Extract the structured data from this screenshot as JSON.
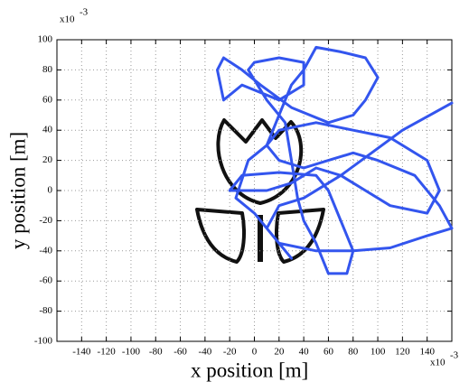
{
  "chart_data": {
    "type": "line",
    "xlabel": "x position [m]",
    "ylabel": "y position [m]",
    "x_multiplier": {
      "base": "x10",
      "exponent": "-3"
    },
    "y_multiplier": {
      "base": "x10",
      "exponent": "-3"
    },
    "color": "#3355ee",
    "grid": true,
    "xlim": [
      -160,
      160
    ],
    "ylim": [
      -100,
      100
    ],
    "xticks": [
      -140,
      -120,
      -100,
      -80,
      -60,
      -40,
      -20,
      0,
      20,
      40,
      60,
      80,
      100,
      120,
      140
    ],
    "yticks": [
      -100,
      -80,
      -60,
      -40,
      -20,
      0,
      20,
      40,
      60,
      80,
      100
    ],
    "x": [
      160,
      120,
      95,
      70,
      40,
      20,
      10,
      20,
      50,
      80,
      110,
      140,
      160,
      150,
      130,
      100,
      80,
      60,
      40,
      20,
      10,
      20,
      50,
      80,
      110,
      140,
      150,
      140,
      110,
      90,
      70,
      50,
      30,
      10,
      -20,
      -10,
      20,
      50,
      60,
      70,
      80,
      75,
      60,
      50,
      40,
      35,
      30,
      25,
      10,
      -5,
      0,
      20,
      40,
      40,
      20,
      -10,
      -25,
      -30,
      -25,
      -10,
      5,
      30,
      60,
      80,
      90,
      100,
      90,
      70,
      50,
      40,
      30,
      20,
      10,
      -5,
      -15,
      0,
      15,
      30
    ],
    "values": [
      58,
      40,
      25,
      10,
      -5,
      -10,
      -25,
      -35,
      -40,
      -40,
      -38,
      -30,
      -25,
      -10,
      10,
      20,
      25,
      20,
      15,
      20,
      30,
      40,
      45,
      40,
      35,
      20,
      0,
      -15,
      -10,
      0,
      10,
      15,
      5,
      0,
      0,
      10,
      12,
      10,
      0,
      -20,
      -40,
      -55,
      -55,
      -35,
      -20,
      -5,
      20,
      45,
      60,
      80,
      85,
      88,
      85,
      70,
      60,
      70,
      60,
      80,
      88,
      80,
      70,
      55,
      45,
      50,
      60,
      75,
      88,
      92,
      95,
      80,
      70,
      50,
      30,
      20,
      -5,
      -15,
      -30,
      -45
    ]
  }
}
